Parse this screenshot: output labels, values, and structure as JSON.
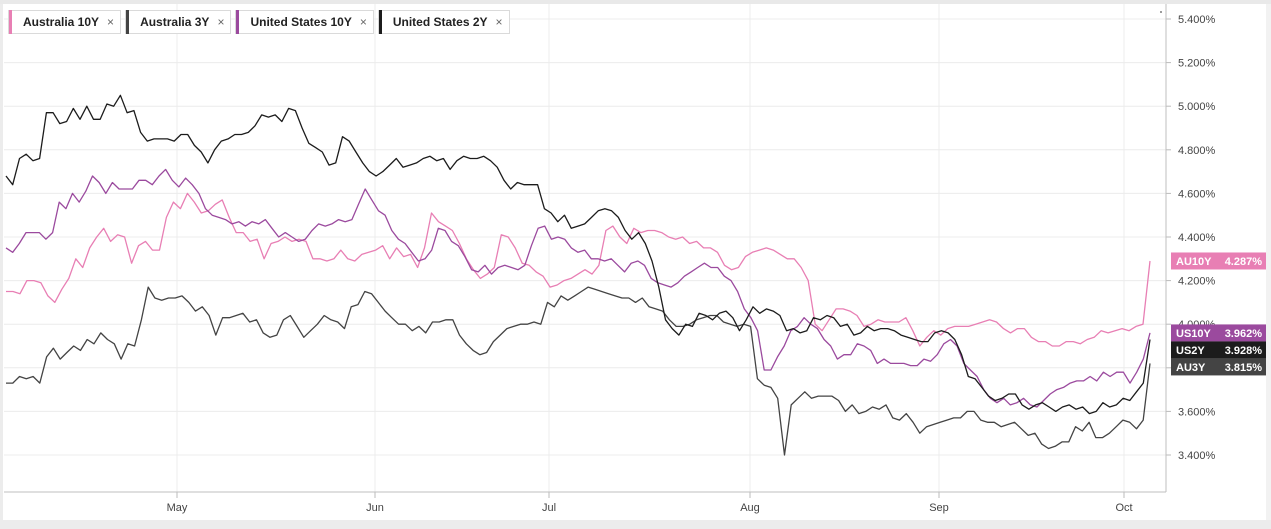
{
  "chart_data": {
    "type": "line",
    "x_labels": [
      "May",
      "Jun",
      "Jul",
      "Aug",
      "Sep",
      "Oct"
    ],
    "ylim": [
      3.2,
      5.5
    ],
    "y_ticks": [
      "3.400%",
      "3.600%",
      "3.800%",
      "4.000%",
      "4.200%",
      "4.400%",
      "4.600%",
      "4.800%",
      "5.000%",
      "5.200%",
      "5.400%"
    ],
    "y_tick_values": [
      3.4,
      3.6,
      3.8,
      4.0,
      4.2,
      4.4,
      4.6,
      4.8,
      5.0,
      5.2,
      5.4
    ],
    "grid": true,
    "legend_placement": "top-left",
    "series": [
      {
        "name": "Australia 10Y",
        "color": "#e87fb4",
        "end_tag": "AU10Y",
        "end_value": "4.287%",
        "values": [
          4.15,
          4.15,
          4.14,
          4.2,
          4.2,
          4.19,
          4.13,
          4.1,
          4.16,
          4.21,
          4.3,
          4.26,
          4.35,
          4.4,
          4.44,
          4.38,
          4.41,
          4.4,
          4.28,
          4.36,
          4.38,
          4.34,
          4.34,
          4.49,
          4.56,
          4.53,
          4.6,
          4.56,
          4.51,
          4.52,
          4.55,
          4.57,
          4.49,
          4.42,
          4.42,
          4.38,
          4.39,
          4.3,
          4.37,
          4.38,
          4.4,
          4.38,
          4.39,
          4.38,
          4.3,
          4.3,
          4.29,
          4.3,
          4.34,
          4.3,
          4.29,
          4.32,
          4.33,
          4.34,
          4.36,
          4.3,
          4.35,
          4.31,
          4.32,
          4.26,
          4.35,
          4.51,
          4.47,
          4.45,
          4.43,
          4.37,
          4.3,
          4.25,
          4.21,
          4.23,
          4.26,
          4.41,
          4.4,
          4.35,
          4.28,
          4.27,
          4.24,
          4.22,
          4.17,
          4.18,
          4.2,
          4.21,
          4.23,
          4.25,
          4.23,
          4.27,
          4.43,
          4.45,
          4.4,
          4.37,
          4.44,
          4.42,
          4.43,
          4.43,
          4.42,
          4.4,
          4.39,
          4.4,
          4.37,
          4.38,
          4.35,
          4.35,
          4.33,
          4.27,
          4.25,
          4.26,
          4.31,
          4.33,
          4.34,
          4.35,
          4.34,
          4.32,
          4.3,
          4.3,
          4.26,
          4.2,
          4.0,
          3.97,
          4.02,
          4.07,
          4.07,
          4.06,
          4.04,
          3.99,
          4.0,
          4.02,
          4.01,
          4.01,
          4.01,
          4.03,
          3.97,
          3.9,
          3.94,
          3.97,
          3.95,
          3.98,
          3.99,
          3.99,
          3.99,
          4.0,
          4.01,
          4.02,
          4.01,
          3.98,
          3.96,
          3.98,
          3.98,
          3.94,
          3.92,
          3.92,
          3.9,
          3.9,
          3.92,
          3.92,
          3.91,
          3.93,
          3.94,
          3.97,
          3.96,
          3.97,
          3.98,
          3.97,
          3.99,
          4.0,
          4.29
        ]
      },
      {
        "name": "Australia 3Y",
        "color": "#444444",
        "end_tag": "AU3Y",
        "end_value": "3.815%",
        "values": [
          3.73,
          3.73,
          3.76,
          3.75,
          3.76,
          3.73,
          3.85,
          3.89,
          3.84,
          3.87,
          3.9,
          3.88,
          3.93,
          3.91,
          3.96,
          3.93,
          3.91,
          3.84,
          3.91,
          3.9,
          4.02,
          4.17,
          4.12,
          4.11,
          4.12,
          4.12,
          4.13,
          4.1,
          4.06,
          4.08,
          4.04,
          3.95,
          4.03,
          4.03,
          4.04,
          4.05,
          4.01,
          4.02,
          3.96,
          3.94,
          3.95,
          4.02,
          4.04,
          3.99,
          3.94,
          3.97,
          4.0,
          4.04,
          4.02,
          4.01,
          3.98,
          4.08,
          4.09,
          4.15,
          4.14,
          4.1,
          4.06,
          4.03,
          4.0,
          4.0,
          3.97,
          3.99,
          3.96,
          4.01,
          4.01,
          4.02,
          4.02,
          3.95,
          3.91,
          3.88,
          3.86,
          3.87,
          3.92,
          3.95,
          3.98,
          3.99,
          4.0,
          4.0,
          4.01,
          4.0,
          4.1,
          4.08,
          4.13,
          4.11,
          4.13,
          4.15,
          4.17,
          4.16,
          4.15,
          4.14,
          4.13,
          4.12,
          4.12,
          4.1,
          4.12,
          4.08,
          4.07,
          4.06,
          4.02,
          3.99,
          3.99,
          4.0,
          4.02,
          4.03,
          4.04,
          4.04,
          4.01,
          4.0,
          3.99,
          4.0,
          3.99,
          3.75,
          3.72,
          3.71,
          3.66,
          3.4,
          3.63,
          3.66,
          3.69,
          3.66,
          3.67,
          3.67,
          3.67,
          3.65,
          3.6,
          3.63,
          3.59,
          3.6,
          3.62,
          3.61,
          3.63,
          3.57,
          3.56,
          3.59,
          3.55,
          3.5,
          3.53,
          3.54,
          3.55,
          3.56,
          3.57,
          3.57,
          3.6,
          3.6,
          3.56,
          3.55,
          3.55,
          3.53,
          3.54,
          3.55,
          3.52,
          3.49,
          3.5,
          3.45,
          3.43,
          3.44,
          3.46,
          3.46,
          3.53,
          3.51,
          3.55,
          3.48,
          3.48,
          3.5,
          3.53,
          3.56,
          3.55,
          3.52,
          3.56,
          3.82
        ]
      },
      {
        "name": "United States 10Y",
        "color": "#9b4a9e",
        "end_tag": "US10Y",
        "end_value": "3.962%",
        "values": [
          4.35,
          4.33,
          4.37,
          4.42,
          4.42,
          4.42,
          4.39,
          4.42,
          4.56,
          4.53,
          4.6,
          4.56,
          4.61,
          4.68,
          4.65,
          4.6,
          4.65,
          4.62,
          4.62,
          4.62,
          4.66,
          4.66,
          4.64,
          4.68,
          4.71,
          4.66,
          4.63,
          4.67,
          4.64,
          4.6,
          4.53,
          4.5,
          4.49,
          4.48,
          4.46,
          4.47,
          4.45,
          4.47,
          4.46,
          4.48,
          4.44,
          4.4,
          4.42,
          4.4,
          4.38,
          4.39,
          4.43,
          4.46,
          4.45,
          4.46,
          4.48,
          4.47,
          4.48,
          4.55,
          4.62,
          4.57,
          4.52,
          4.5,
          4.43,
          4.39,
          4.37,
          4.33,
          4.29,
          4.3,
          4.34,
          4.44,
          4.43,
          4.38,
          4.36,
          4.31,
          4.25,
          4.24,
          4.27,
          4.23,
          4.26,
          4.27,
          4.26,
          4.25,
          4.27,
          4.36,
          4.44,
          4.45,
          4.39,
          4.4,
          4.39,
          4.35,
          4.33,
          4.34,
          4.3,
          4.3,
          4.29,
          4.3,
          4.27,
          4.24,
          4.28,
          4.29,
          4.27,
          4.21,
          4.19,
          4.18,
          4.17,
          4.19,
          4.22,
          4.24,
          4.26,
          4.28,
          4.26,
          4.26,
          4.22,
          4.2,
          4.15,
          4.07,
          4.03,
          3.97,
          3.79,
          3.79,
          3.85,
          3.9,
          3.97,
          3.99,
          4.03,
          4.0,
          3.98,
          3.93,
          3.9,
          3.84,
          3.86,
          3.86,
          3.91,
          3.9,
          3.88,
          3.82,
          3.84,
          3.82,
          3.82,
          3.82,
          3.81,
          3.81,
          3.84,
          3.83,
          3.86,
          3.91,
          3.93,
          3.9,
          3.82,
          3.79,
          3.76,
          3.7,
          3.66,
          3.64,
          3.66,
          3.63,
          3.64,
          3.66,
          3.63,
          3.62,
          3.65,
          3.68,
          3.7,
          3.71,
          3.73,
          3.74,
          3.74,
          3.76,
          3.74,
          3.78,
          3.76,
          3.78,
          3.78,
          3.73,
          3.78,
          3.84,
          3.96
        ]
      },
      {
        "name": "United States 2Y",
        "color": "#1c1c1c",
        "end_tag": "US2Y",
        "end_value": "3.928%",
        "values": [
          4.68,
          4.64,
          4.76,
          4.78,
          4.75,
          4.76,
          4.97,
          4.97,
          4.92,
          4.93,
          4.99,
          4.94,
          5.0,
          4.94,
          4.94,
          5.01,
          5.0,
          5.05,
          4.97,
          4.98,
          4.88,
          4.84,
          4.85,
          4.85,
          4.85,
          4.84,
          4.87,
          4.87,
          4.82,
          4.79,
          4.74,
          4.8,
          4.84,
          4.85,
          4.87,
          4.87,
          4.88,
          4.91,
          4.96,
          4.95,
          4.96,
          4.93,
          4.99,
          4.98,
          4.9,
          4.83,
          4.81,
          4.79,
          4.73,
          4.74,
          4.86,
          4.84,
          4.79,
          4.74,
          4.7,
          4.68,
          4.7,
          4.73,
          4.76,
          4.72,
          4.73,
          4.74,
          4.76,
          4.77,
          4.75,
          4.76,
          4.71,
          4.75,
          4.77,
          4.76,
          4.76,
          4.77,
          4.75,
          4.72,
          4.66,
          4.62,
          4.65,
          4.64,
          4.64,
          4.64,
          4.53,
          4.51,
          4.47,
          4.5,
          4.44,
          4.45,
          4.46,
          4.49,
          4.52,
          4.53,
          4.52,
          4.49,
          4.43,
          4.39,
          4.42,
          4.37,
          4.29,
          4.17,
          4.02,
          3.98,
          3.95,
          4.0,
          3.99,
          4.05,
          4.04,
          4.02,
          4.05,
          4.06,
          4.03,
          3.97,
          4.02,
          4.08,
          4.05,
          4.07,
          4.06,
          4.04,
          3.97,
          3.98,
          3.96,
          3.97,
          4.03,
          4.02,
          4.04,
          4.03,
          3.99,
          4.0,
          3.95,
          3.96,
          3.99,
          3.97,
          3.98,
          3.98,
          3.97,
          3.95,
          3.94,
          3.93,
          3.92,
          3.92,
          3.96,
          3.97,
          3.96,
          3.93,
          3.86,
          3.76,
          3.75,
          3.71,
          3.67,
          3.65,
          3.66,
          3.68,
          3.68,
          3.63,
          3.61,
          3.63,
          3.64,
          3.62,
          3.6,
          3.62,
          3.63,
          3.61,
          3.62,
          3.59,
          3.6,
          3.64,
          3.62,
          3.63,
          3.66,
          3.65,
          3.69,
          3.73,
          3.93
        ]
      }
    ]
  },
  "legend": {
    "items": [
      {
        "label": "Australia 10Y",
        "color": "#e87fb4"
      },
      {
        "label": "Australia 3Y",
        "color": "#444444"
      },
      {
        "label": "United States 10Y",
        "color": "#9b4a9e"
      },
      {
        "label": "United States 2Y",
        "color": "#1c1c1c"
      }
    ],
    "close_glyph": "×"
  }
}
